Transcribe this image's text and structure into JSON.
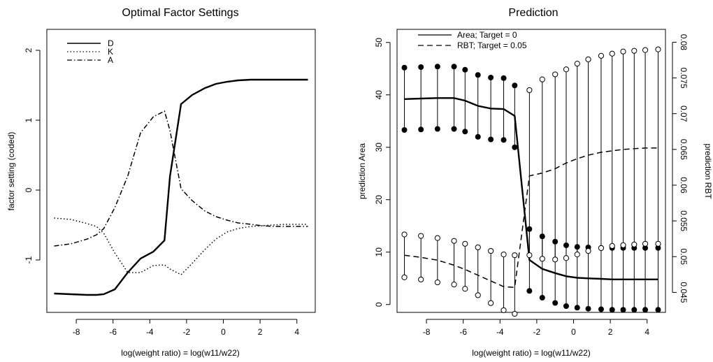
{
  "chart_data": [
    {
      "type": "line",
      "title": "Optimal Factor Settings",
      "xlabel": "log(weight ratio) = log(w11/w22)",
      "ylabel": "factor setting (coded)",
      "xlim": [
        -9.6,
        5.0
      ],
      "ylim": [
        -1.75,
        2.3
      ],
      "xticks": [
        -8,
        -6,
        -4,
        -2,
        0,
        2,
        4
      ],
      "xtick_labels": [
        "-8",
        "-6",
        "-4",
        "-2",
        "0",
        "2",
        "4"
      ],
      "yticks": [
        -1,
        0,
        1,
        2
      ],
      "ytick_labels": [
        "-1",
        "0",
        "1",
        "2"
      ],
      "legend_position": "top-left",
      "x": [
        -9.2,
        -8.3,
        -7.4,
        -6.9,
        -6.5,
        -5.9,
        -5.2,
        -4.5,
        -3.8,
        -3.2,
        -2.9,
        -2.3,
        -1.7,
        -1.0,
        -0.4,
        0.2,
        0.8,
        1.5,
        2.1,
        2.7,
        3.3,
        3.9,
        4.6
      ],
      "series": [
        {
          "name": "D",
          "style": "solid",
          "values": [
            -1.48,
            -1.49,
            -1.5,
            -1.5,
            -1.49,
            -1.42,
            -1.18,
            -0.98,
            -0.88,
            -0.72,
            0.2,
            1.23,
            1.36,
            1.46,
            1.52,
            1.55,
            1.57,
            1.58,
            1.58,
            1.58,
            1.58,
            1.58,
            1.58
          ]
        },
        {
          "name": "K",
          "style": "dotted",
          "values": [
            -0.4,
            -0.42,
            -0.48,
            -0.52,
            -0.62,
            -0.9,
            -1.18,
            -1.18,
            -1.08,
            -1.07,
            -1.13,
            -1.21,
            -1.05,
            -0.85,
            -0.7,
            -0.6,
            -0.55,
            -0.52,
            -0.51,
            -0.5,
            -0.49,
            -0.49,
            -0.49
          ]
        },
        {
          "name": "A",
          "style": "dashdot",
          "values": [
            -0.8,
            -0.77,
            -0.7,
            -0.64,
            -0.55,
            -0.25,
            0.2,
            0.82,
            1.05,
            1.13,
            0.85,
            0.02,
            -0.15,
            -0.3,
            -0.38,
            -0.43,
            -0.47,
            -0.49,
            -0.51,
            -0.52,
            -0.52,
            -0.52,
            -0.52
          ]
        }
      ]
    },
    {
      "type": "line",
      "title": "Prediction",
      "xlabel": "log(weight ratio) = log(w11/w22)",
      "ylabel": "prediction Area",
      "ylabel_right": "prediction RBT",
      "xlim": [
        -9.6,
        5.0
      ],
      "ylim": [
        -1.5,
        52.5
      ],
      "y2lim": [
        0.0422,
        0.0818
      ],
      "xticks": [
        -8,
        -6,
        -4,
        -2,
        0,
        2,
        4
      ],
      "xtick_labels": [
        "-8",
        "-6",
        "-4",
        "-2",
        "0",
        "2",
        "4"
      ],
      "yticks": [
        0,
        10,
        20,
        30,
        40,
        50
      ],
      "ytick_labels": [
        "0",
        "10",
        "20",
        "30",
        "40",
        "50"
      ],
      "y2ticks": [
        0.045,
        0.05,
        0.055,
        0.06,
        0.065,
        0.07,
        0.075,
        0.08
      ],
      "y2tick_labels": [
        "0.045",
        "0.05",
        "0.055",
        "0.06",
        "0.065",
        "0.07",
        "0.075",
        "0.08"
      ],
      "legend_position": "top",
      "legend": [
        {
          "label": "Area;  Target = 0",
          "style": "solid"
        },
        {
          "label": "RBT;  Target = 0.05",
          "style": "dashed"
        }
      ],
      "x": [
        -9.2,
        -8.3,
        -7.4,
        -6.5,
        -5.9,
        -5.2,
        -4.5,
        -3.8,
        -3.2,
        -2.4,
        -1.7,
        -1.0,
        -0.4,
        0.2,
        0.8,
        1.5,
        2.1,
        2.7,
        3.3,
        3.9,
        4.6
      ],
      "series": [
        {
          "name": "Area",
          "axis": "left",
          "style": "solid",
          "values": [
            39.2,
            39.3,
            39.4,
            39.4,
            38.9,
            37.9,
            37.4,
            37.3,
            36.0,
            8.5,
            6.8,
            6.0,
            5.4,
            5.1,
            5.0,
            4.9,
            4.8,
            4.8,
            4.8,
            4.8,
            4.8
          ]
        },
        {
          "name": "Area upper",
          "axis": "left",
          "style": "filled-point",
          "values": [
            45.2,
            45.3,
            45.4,
            45.4,
            44.8,
            43.8,
            43.3,
            43.2,
            41.8,
            14.4,
            13.0,
            12.0,
            11.3,
            11.0,
            10.9,
            10.8,
            10.8,
            10.8,
            10.8,
            10.8,
            10.8
          ]
        },
        {
          "name": "Area lower",
          "axis": "left",
          "style": "filled-point",
          "values": [
            33.3,
            33.4,
            33.5,
            33.5,
            33.0,
            32.0,
            31.5,
            31.4,
            30.0,
            2.6,
            1.3,
            0.3,
            -0.3,
            -0.6,
            -0.8,
            -0.9,
            -1.0,
            -1.0,
            -1.0,
            -1.0,
            -1.0
          ]
        },
        {
          "name": "RBT",
          "axis": "right",
          "style": "dashed",
          "values": [
            0.0502,
            0.0499,
            0.0495,
            0.0488,
            0.0482,
            0.0474,
            0.0466,
            0.0458,
            0.0457,
            0.0613,
            0.0617,
            0.0623,
            0.0631,
            0.0637,
            0.0642,
            0.0646,
            0.0648,
            0.065,
            0.0651,
            0.0652,
            0.0652
          ]
        },
        {
          "name": "RBT upper",
          "axis": "right",
          "style": "open-point",
          "values": [
            0.0531,
            0.0529,
            0.0526,
            0.0522,
            0.0518,
            0.0513,
            0.0508,
            0.0503,
            0.0502,
            0.0733,
            0.0748,
            0.0755,
            0.0762,
            0.077,
            0.0776,
            0.0781,
            0.0784,
            0.0787,
            0.0788,
            0.0789,
            0.079
          ]
        },
        {
          "name": "RBT lower",
          "axis": "right",
          "style": "open-point",
          "values": [
            0.0471,
            0.0468,
            0.0464,
            0.0461,
            0.0455,
            0.0446,
            0.0435,
            0.0425,
            0.042,
            0.0502,
            0.0497,
            0.0496,
            0.0498,
            0.0503,
            0.0508,
            0.0512,
            0.0515,
            0.0516,
            0.0517,
            0.0518,
            0.0518
          ]
        }
      ]
    }
  ]
}
